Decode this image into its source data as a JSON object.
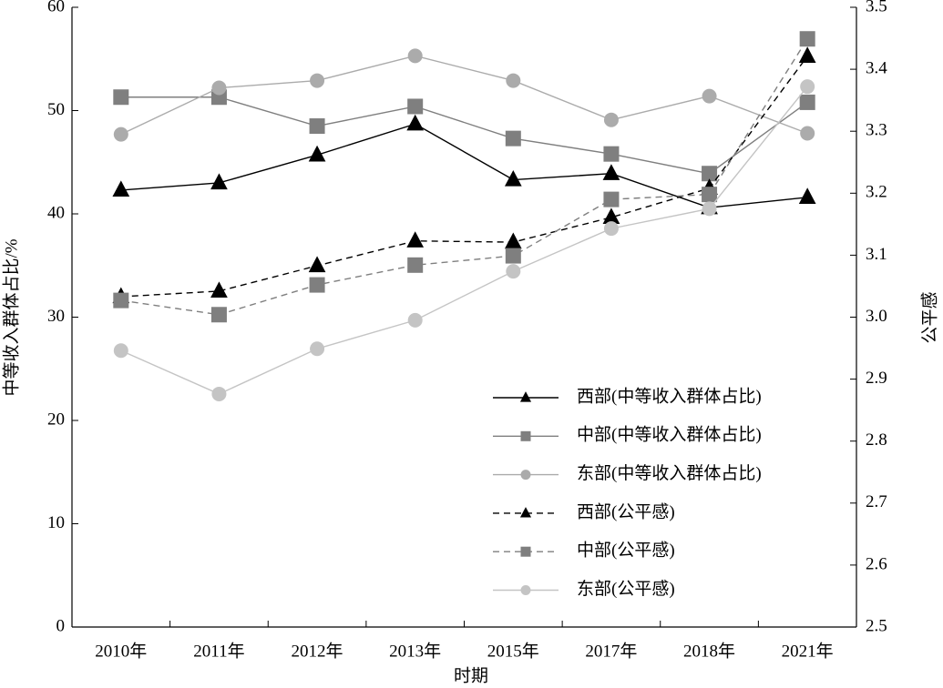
{
  "chart_data": {
    "type": "line",
    "x_label": "时期",
    "y_label": "中等收入群体占比/%",
    "y2_label": "公平感",
    "categories": [
      "2010年",
      "2011年",
      "2012年",
      "2013年",
      "2015年",
      "2017年",
      "2018年",
      "2021年"
    ],
    "ylim": [
      0,
      60
    ],
    "yticks": [
      0,
      10,
      20,
      30,
      40,
      50,
      60
    ],
    "y2lim": [
      2.5,
      3.5
    ],
    "y2ticks": [
      2.5,
      2.6,
      2.7,
      2.8,
      2.9,
      {
        "value": 3,
        "label": "3.0"
      },
      3.1,
      3.2,
      3.3,
      3.4,
      3.5
    ],
    "series": [
      {
        "name": "西部(中等收入群体占比)",
        "color": "#000000",
        "line_style": "solid",
        "marker": "triangle",
        "values": [
          42.3,
          43.0,
          45.7,
          48.7,
          43.3,
          43.9,
          40.6,
          41.6
        ]
      },
      {
        "name": "中部(中等收入群体占比)",
        "color": "#7f7f7f",
        "line_style": "solid",
        "marker": "square",
        "values": [
          51.3,
          51.3,
          48.5,
          50.4,
          47.3,
          45.8,
          43.9,
          50.8
        ]
      },
      {
        "name": "东部(中等收入群体占比)",
        "color": "#ababab",
        "line_style": "solid",
        "marker": "circle",
        "values": [
          47.7,
          52.2,
          52.9,
          55.3,
          52.9,
          49.1,
          51.4,
          47.8
        ]
      },
      {
        "name": "西部(公平感)",
        "color": "#000000",
        "line_style": "dashed",
        "marker": "triangle",
        "axis": "y2",
        "values": [
          3.033,
          3.042,
          3.083,
          3.123,
          3.121,
          3.161,
          3.208,
          3.421
        ]
      },
      {
        "name": "中部(公平感)",
        "color": "#7f7f7f",
        "line_style": "dashed",
        "marker": "square",
        "axis": "y2",
        "values": [
          3.027,
          3.004,
          3.052,
          3.084,
          3.099,
          3.19,
          3.198,
          3.449
        ]
      },
      {
        "name": "东部(公平感)",
        "color": "#c4c4c4",
        "line_style": "solid",
        "marker": "circle",
        "axis": "y2",
        "values": [
          2.946,
          2.876,
          2.949,
          2.995,
          3.074,
          3.143,
          3.175,
          3.372
        ]
      }
    ]
  }
}
